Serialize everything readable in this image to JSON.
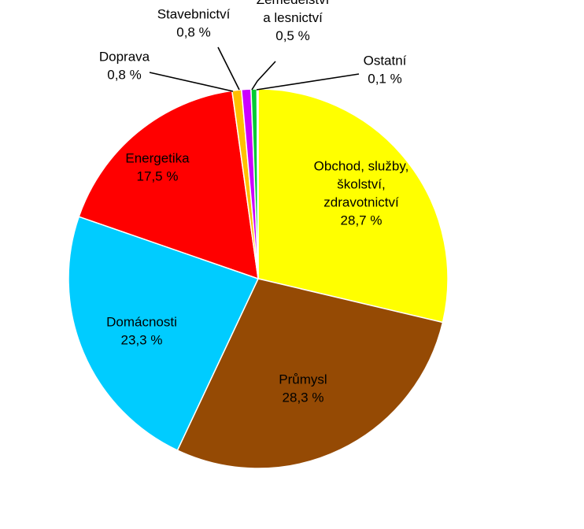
{
  "chart_data": {
    "type": "pie",
    "title": "",
    "start_angle_deg": 0,
    "direction": "clockwise",
    "slices": [
      {
        "lines": [
          "Obchod, služby,",
          "školství,",
          "zdravotnictví"
        ],
        "value": 28.7,
        "label": "28,7 %",
        "color": "#ffff00"
      },
      {
        "lines": [
          "Průmysl"
        ],
        "value": 28.3,
        "label": "28,3 %",
        "color": "#954a04"
      },
      {
        "lines": [
          "Domácnosti"
        ],
        "value": 23.3,
        "label": "23,3 %",
        "color": "#00ccff"
      },
      {
        "lines": [
          "Energetika"
        ],
        "value": 17.5,
        "label": "17,5 %",
        "color": "#ff0000"
      },
      {
        "lines": [
          "Doprava"
        ],
        "value": 0.8,
        "label": "0,8 %",
        "color": "#ffc000"
      },
      {
        "lines": [
          "Stavebnictví"
        ],
        "value": 0.8,
        "label": "0,8 %",
        "color": "#cc00ff"
      },
      {
        "lines": [
          "Zemědělství",
          "a lesnictví"
        ],
        "value": 0.5,
        "label": "0,5 %",
        "color": "#00cc33"
      },
      {
        "lines": [
          "Ostatní"
        ],
        "value": 0.1,
        "label": "0,1 %",
        "color": "#66ffff"
      }
    ]
  }
}
